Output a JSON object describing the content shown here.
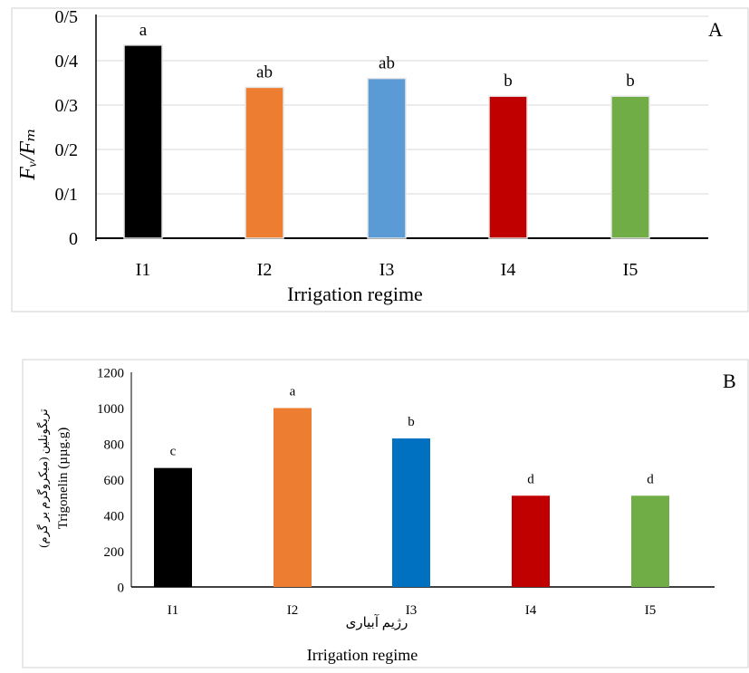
{
  "chart_data": [
    {
      "panel_label": "A",
      "type": "bar",
      "categories": [
        "I1",
        "I2",
        "I3",
        "I4",
        "I5"
      ],
      "values": [
        0.435,
        0.34,
        0.36,
        0.32,
        0.32
      ],
      "letters": [
        "a",
        "ab",
        "ab",
        "b",
        "b"
      ],
      "colors": [
        "#000000",
        "#ED7D31",
        "#5B9BD5",
        "#C00000",
        "#70AD47"
      ],
      "ylabel": "Fᵥ/Fₘ",
      "xlabel": "Irrigation regime",
      "yticks": [
        "0",
        "0/1",
        "0/2",
        "0/3",
        "0/4",
        "0/5"
      ],
      "ylim": [
        0,
        0.5
      ],
      "grid": true
    },
    {
      "panel_label": "B",
      "type": "bar",
      "categories": [
        "I1",
        "I2",
        "I3",
        "I4",
        "I5"
      ],
      "values": [
        665,
        1000,
        830,
        510,
        510
      ],
      "letters": [
        "c",
        "a",
        "b",
        "d",
        "d"
      ],
      "colors": [
        "#000000",
        "#ED7D31",
        "#0070C0",
        "#C00000",
        "#70AD47"
      ],
      "ylabel_fa": "تریگونلین (میکروگرم بر گرم)",
      "ylabel_en": "Trigonelin (µµg.g)",
      "xlabel_fa": "رژیم آبیاری",
      "xlabel_en": "Irrigation regime",
      "yticks": [
        "0",
        "200",
        "400",
        "600",
        "800",
        "1000",
        "1200"
      ],
      "ylim": [
        0,
        1200
      ],
      "grid": false
    }
  ]
}
